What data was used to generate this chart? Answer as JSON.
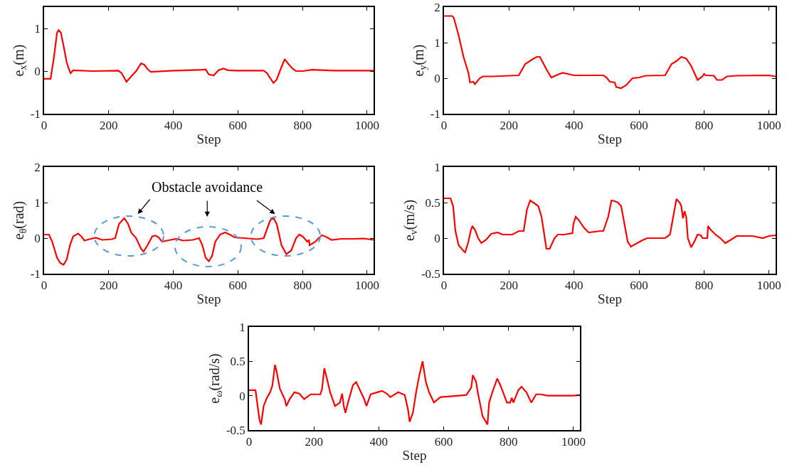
{
  "chart_data": [
    {
      "type": "line",
      "xlabel": "Step",
      "ylabel": "e$_{x}$(m)",
      "xlim": [
        0,
        1020
      ],
      "xticks": [
        0,
        200,
        400,
        600,
        800,
        1000
      ],
      "ylim": [
        -1,
        1.5
      ],
      "yticks": [
        -1,
        0,
        1
      ],
      "x": [
        0,
        20,
        30,
        40,
        45,
        52,
        60,
        70,
        78,
        82,
        90,
        150,
        230,
        240,
        255,
        270,
        285,
        300,
        310,
        320,
        330,
        400,
        490,
        500,
        510,
        525,
        540,
        555,
        570,
        600,
        680,
        690,
        710,
        720,
        735,
        745,
        755,
        770,
        780,
        800,
        830,
        900,
        1020
      ],
      "series": [
        {
          "color": "#ff0000",
          "values": [
            -0.18,
            -0.18,
            0.3,
            0.9,
            0.96,
            0.9,
            0.6,
            0.2,
            0.02,
            -0.05,
            0.02,
            0,
            0.01,
            -0.05,
            -0.25,
            -0.12,
            0,
            0.18,
            0.15,
            0.05,
            -0.02,
            0.01,
            0.03,
            0.04,
            -0.08,
            -0.1,
            0.02,
            0.06,
            0.02,
            0.01,
            0.01,
            -0.05,
            -0.28,
            -0.2,
            0.1,
            0.28,
            0.18,
            0.05,
            0,
            0,
            0.03,
            0.01,
            0.01
          ]
        }
      ]
    },
    {
      "type": "line",
      "xlabel": "Step",
      "ylabel": "e$_{y}$(m)",
      "xlim": [
        0,
        1020
      ],
      "xticks": [
        0,
        200,
        400,
        600,
        800,
        1000
      ],
      "ylim": [
        -1,
        2
      ],
      "yticks": [
        -1,
        0,
        1,
        2
      ],
      "x": [
        0,
        25,
        30,
        45,
        60,
        75,
        80,
        90,
        95,
        110,
        120,
        150,
        200,
        230,
        250,
        270,
        285,
        295,
        315,
        330,
        350,
        365,
        400,
        490,
        500,
        510,
        525,
        530,
        545,
        560,
        580,
        600,
        620,
        680,
        700,
        715,
        730,
        745,
        760,
        775,
        780,
        795,
        800,
        805,
        830,
        840,
        855,
        870,
        900,
        1000,
        1020
      ],
      "series": [
        {
          "color": "#ff0000",
          "values": [
            1.75,
            1.75,
            1.7,
            1.2,
            0.6,
            0.15,
            -0.12,
            -0.1,
            -0.17,
            0,
            0.05,
            0.05,
            0.07,
            0.08,
            0.4,
            0.52,
            0.6,
            0.6,
            0.25,
            0.02,
            0.1,
            0.15,
            0.08,
            0.08,
            0.02,
            -0.1,
            -0.12,
            -0.25,
            -0.28,
            -0.2,
            0,
            0.02,
            0.07,
            0.08,
            0.4,
            0.48,
            0.6,
            0.55,
            0.35,
            0.05,
            -0.05,
            0.05,
            0.12,
            0.08,
            0.07,
            -0.05,
            -0.05,
            0.05,
            0.07,
            0.08,
            0.05
          ]
        }
      ]
    },
    {
      "type": "line",
      "xlabel": "Step",
      "ylabel": "e$_{θ}$(rad)",
      "xlim": [
        0,
        1020
      ],
      "xticks": [
        0,
        200,
        400,
        600,
        800,
        1000
      ],
      "ylim": [
        -1,
        2
      ],
      "yticks": [
        -1,
        0,
        1,
        2
      ],
      "annotations": [
        "Obstacle avoidance"
      ],
      "x": [
        0,
        15,
        25,
        40,
        50,
        60,
        70,
        80,
        90,
        105,
        115,
        125,
        140,
        160,
        180,
        210,
        220,
        232,
        248,
        260,
        270,
        285,
        300,
        308,
        320,
        335,
        345,
        355,
        365,
        380,
        410,
        430,
        460,
        480,
        490,
        500,
        510,
        520,
        530,
        545,
        560,
        575,
        590,
        620,
        660,
        680,
        690,
        700,
        710,
        720,
        735,
        750,
        765,
        780,
        790,
        800,
        810,
        815,
        820,
        822,
        840,
        850,
        860,
        870,
        890,
        920,
        960,
        990,
        1020
      ],
      "series": [
        {
          "color": "#ff0000",
          "values": [
            0.1,
            0.1,
            -0.1,
            -0.55,
            -0.7,
            -0.75,
            -0.6,
            -0.2,
            0.05,
            0.13,
            0.05,
            -0.07,
            -0.03,
            0.01,
            -0.05,
            -0.03,
            0,
            0.4,
            0.56,
            0.4,
            0.15,
            0,
            -0.3,
            -0.38,
            -0.2,
            0.05,
            0.07,
            0.02,
            -0.1,
            -0.07,
            -0.02,
            -0.07,
            -0.05,
            0,
            -0.2,
            -0.55,
            -0.65,
            -0.5,
            -0.1,
            0.1,
            0.16,
            0.1,
            0.02,
            0,
            -0.03,
            0,
            0.25,
            0.5,
            0.57,
            0.4,
            -0.2,
            -0.45,
            -0.35,
            0,
            0.1,
            0.05,
            -0.05,
            -0.1,
            -0.05,
            -0.2,
            -0.1,
            0,
            0.08,
            0.05,
            -0.05,
            -0.02,
            -0.02,
            -0.01,
            -0.05
          ]
        }
      ]
    },
    {
      "type": "line",
      "xlabel": "Step",
      "ylabel": "e$_{v}$(m/s)",
      "xlim": [
        0,
        1020
      ],
      "xticks": [
        0,
        200,
        400,
        600,
        800,
        1000
      ],
      "ylim": [
        -0.5,
        1
      ],
      "yticks": [
        -0.5,
        0,
        0.5,
        1
      ],
      "x": [
        0,
        20,
        28,
        35,
        45,
        60,
        65,
        75,
        82,
        87,
        95,
        105,
        115,
        130,
        145,
        165,
        180,
        210,
        230,
        245,
        255,
        265,
        275,
        290,
        300,
        310,
        315,
        325,
        340,
        350,
        370,
        395,
        398,
        405,
        415,
        430,
        445,
        480,
        490,
        505,
        515,
        525,
        535,
        545,
        555,
        565,
        575,
        590,
        610,
        625,
        640,
        680,
        695,
        705,
        715,
        725,
        730,
        735,
        740,
        745,
        750,
        760,
        770,
        780,
        790,
        795,
        810,
        812,
        820,
        835,
        850,
        865,
        880,
        900,
        950,
        980,
        1000,
        1020
      ],
      "series": [
        {
          "color": "#ff0000",
          "values": [
            0.56,
            0.56,
            0.45,
            0.1,
            -0.1,
            -0.18,
            -0.2,
            -0.05,
            0.1,
            0.17,
            0.12,
            0,
            -0.07,
            -0.02,
            0.06,
            0.08,
            0.05,
            0.05,
            0.1,
            0.1,
            0.4,
            0.53,
            0.5,
            0.45,
            0.3,
            0,
            -0.15,
            -0.15,
            0,
            0.05,
            0.05,
            0.07,
            0.2,
            0.3,
            0.25,
            0.15,
            0.08,
            0.1,
            0.1,
            0.3,
            0.53,
            0.52,
            0.5,
            0.45,
            0.2,
            -0.05,
            -0.12,
            -0.08,
            -0.03,
            0,
            0,
            0,
            0.05,
            0.3,
            0.55,
            0.5,
            0.45,
            0.28,
            0.38,
            0.3,
            0,
            -0.13,
            -0.05,
            0.05,
            0.04,
            0,
            0,
            0.17,
            0.12,
            0.05,
            0,
            -0.07,
            -0.03,
            0.03,
            0.03,
            0,
            0.03,
            0.04
          ]
        }
      ]
    },
    {
      "type": "line",
      "xlabel": "Step",
      "ylabel": "e$_{ω}$(rad/s)",
      "xlim": [
        0,
        1020
      ],
      "xticks": [
        0,
        200,
        400,
        600,
        800,
        1000
      ],
      "ylim": [
        -0.5,
        1
      ],
      "yticks": [
        -0.5,
        0,
        0.5,
        1
      ],
      "x": [
        0,
        20,
        25,
        32,
        37,
        45,
        55,
        65,
        72,
        80,
        85,
        95,
        110,
        115,
        125,
        140,
        155,
        170,
        190,
        220,
        225,
        232,
        240,
        250,
        265,
        280,
        287,
        292,
        297,
        305,
        320,
        330,
        340,
        355,
        362,
        375,
        395,
        410,
        425,
        435,
        460,
        480,
        490,
        495,
        505,
        515,
        525,
        535,
        545,
        555,
        570,
        590,
        620,
        670,
        685,
        690,
        700,
        705,
        720,
        735,
        740,
        750,
        765,
        775,
        795,
        805,
        810,
        815,
        830,
        840,
        855,
        870,
        885,
        900,
        920,
        1000,
        1020
      ],
      "series": [
        {
          "color": "#ff0000",
          "values": [
            0.08,
            0.08,
            -0.1,
            -0.35,
            -0.42,
            -0.15,
            -0.03,
            0.05,
            0.15,
            0.45,
            0.35,
            0.1,
            -0.05,
            -0.15,
            -0.05,
            0.05,
            0.03,
            -0.05,
            0.02,
            0.02,
            0.1,
            0.4,
            0.25,
            0.05,
            -0.15,
            -0.1,
            0.03,
            -0.15,
            -0.25,
            -0.1,
            0.15,
            0.2,
            0.1,
            -0.05,
            -0.15,
            0.02,
            0.05,
            0.07,
            0.03,
            -0.02,
            0.05,
            0.01,
            -0.2,
            -0.38,
            -0.25,
            0.05,
            0.3,
            0.5,
            0.2,
            0.05,
            -0.1,
            -0.02,
            -0.01,
            0.01,
            0.12,
            0.3,
            0.2,
            0.05,
            -0.3,
            -0.42,
            -0.1,
            0.05,
            0.25,
            0.15,
            -0.1,
            -0.1,
            -0.03,
            -0.1,
            0.08,
            0.13,
            0.05,
            -0.1,
            0.02,
            0.02,
            0,
            0,
            0.01
          ]
        }
      ]
    }
  ]
}
